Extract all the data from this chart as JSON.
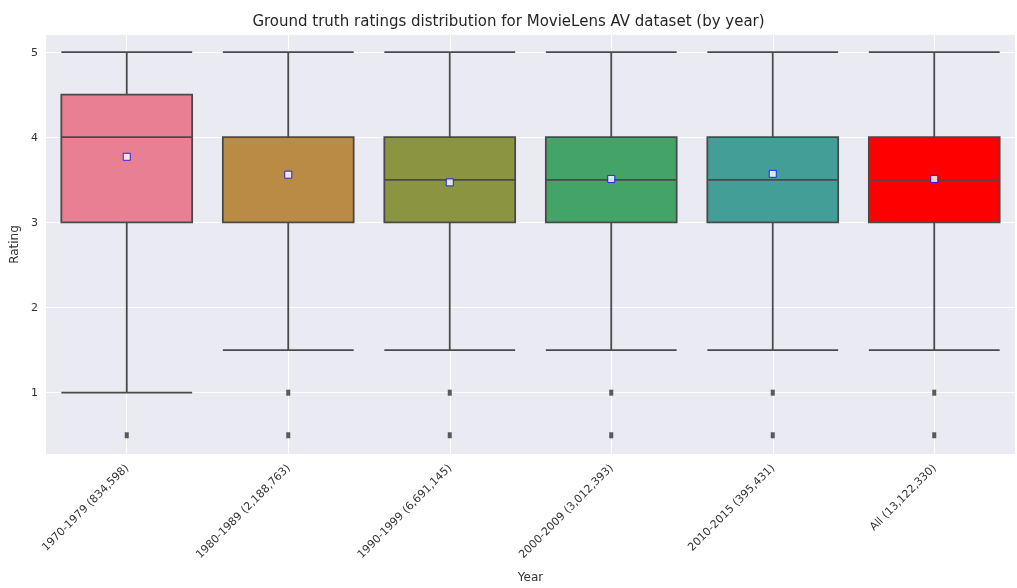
{
  "chart_data": {
    "type": "box",
    "title": "Ground truth ratings distribution for MovieLens AV dataset (by year)",
    "xlabel": "Year",
    "ylabel": "Rating",
    "categories": [
      "1970-1979 (834,598)",
      "1980-1989 (2,188,763)",
      "1990-1999 (6,691,145)",
      "2000-2009 (3,012,393)",
      "2010-2015 (395,431)",
      "All (13,122,330)"
    ],
    "colors": [
      "#e87f93",
      "#b98b45",
      "#8a9441",
      "#44a366",
      "#449e98",
      "#ff0000"
    ],
    "boxes": [
      {
        "low": 1,
        "q1": 3,
        "median": 4,
        "q3": 4.5,
        "high": 5,
        "mean": 3.77,
        "outliers": [
          0.5
        ]
      },
      {
        "low": 1.5,
        "q1": 3,
        "median": 4,
        "q3": 4,
        "high": 5,
        "mean": 3.56,
        "outliers": [
          1,
          0.5
        ]
      },
      {
        "low": 1.5,
        "q1": 3,
        "median": 3.5,
        "q3": 4,
        "high": 5,
        "mean": 3.47,
        "outliers": [
          1,
          0.5
        ]
      },
      {
        "low": 1.5,
        "q1": 3,
        "median": 3.5,
        "q3": 4,
        "high": 5,
        "mean": 3.51,
        "outliers": [
          1,
          0.5
        ]
      },
      {
        "low": 1.5,
        "q1": 3,
        "median": 3.5,
        "q3": 4,
        "high": 5,
        "mean": 3.57,
        "outliers": [
          1,
          0.5
        ]
      },
      {
        "low": 1.5,
        "q1": 3,
        "median": 3.5,
        "q3": 4,
        "high": 5,
        "mean": 3.51,
        "outliers": [
          1,
          0.5
        ]
      }
    ],
    "ylim": [
      0.28,
      5.2
    ],
    "yticks": [
      1,
      2,
      3,
      4,
      5
    ],
    "grid": true
  }
}
